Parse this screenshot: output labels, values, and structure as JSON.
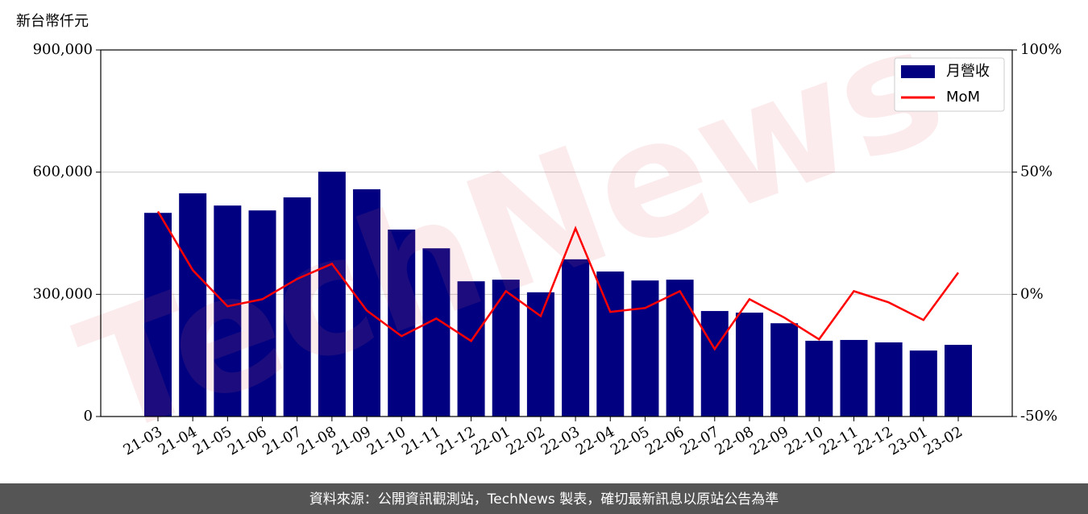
{
  "chart_data": {
    "type": "bar",
    "y_label": "新台幣仟元",
    "watermark": "TechNews",
    "footer": "資料來源：公開資訊觀測站，TechNews 製表，確切最新訊息以原站公告為準",
    "categories": [
      "21-03",
      "21-04",
      "21-05",
      "21-06",
      "21-07",
      "21-08",
      "21-09",
      "21-10",
      "21-11",
      "21-12",
      "22-01",
      "22-02",
      "22-03",
      "22-04",
      "22-05",
      "22-06",
      "22-07",
      "22-08",
      "22-09",
      "22-10",
      "22-11",
      "22-12",
      "23-01",
      "23-02"
    ],
    "series": [
      {
        "name": "月營收",
        "type": "bar",
        "color": "#000080",
        "values": [
          500000,
          548000,
          518000,
          506000,
          538000,
          601000,
          558000,
          459000,
          413000,
          332000,
          336000,
          305000,
          386000,
          356000,
          334000,
          336000,
          259000,
          255000,
          229000,
          186000,
          188000,
          182000,
          162000,
          176000
        ]
      },
      {
        "name": "MoM",
        "type": "line",
        "axis": "y2",
        "color": "#ff0000",
        "values": [
          33.9,
          9.9,
          -4.9,
          -2,
          6.3,
          12.5,
          -6.6,
          -17.1,
          -9.9,
          -19.1,
          1.3,
          -8.9,
          27,
          -7.2,
          -5.6,
          1.3,
          -22.4,
          -2,
          -9.5,
          -18.4,
          1.3,
          -3.3,
          -10.5,
          8.9
        ]
      }
    ],
    "ylim": [
      0,
      900000
    ],
    "yticks": [
      0,
      {
        "value": 300000,
        "label": "300,000"
      },
      {
        "value": 600000,
        "label": "600,000"
      },
      {
        "value": 900000,
        "label": "900,000"
      }
    ],
    "y2lim": [
      -50,
      100
    ],
    "y2ticks": [
      {
        "value": -50,
        "label": "-50%"
      },
      {
        "value": 0,
        "label": "0%"
      },
      {
        "value": 50,
        "label": "50%"
      },
      {
        "value": 100,
        "label": "100%"
      }
    ],
    "grid": true,
    "legend": "upper-right"
  }
}
